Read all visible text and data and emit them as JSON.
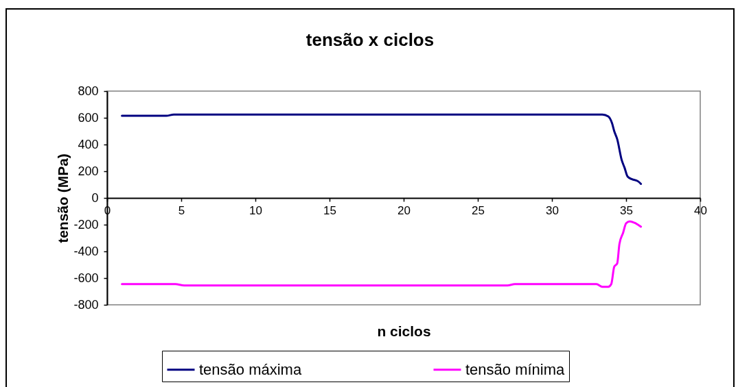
{
  "chart_data": {
    "type": "line",
    "title": "tensão x ciclos",
    "xlabel": "n ciclos",
    "ylabel": "tensão (MPa)",
    "xlim": [
      0,
      40
    ],
    "xticks": [
      0,
      5,
      10,
      15,
      20,
      25,
      30,
      35,
      40
    ],
    "ylim": [
      -800,
      800
    ],
    "yticks": [
      -800,
      -600,
      -400,
      -200,
      0,
      200,
      400,
      600,
      800
    ],
    "grid": false,
    "legend": "bottom",
    "line_style": "solid",
    "series": [
      {
        "name": "tensão máxima",
        "color": "#000080",
        "x": [
          1,
          2,
          3,
          4,
          4.5,
          5,
          6,
          7,
          8,
          9,
          10,
          11,
          12,
          13,
          14,
          15,
          16,
          17,
          18,
          19,
          20,
          21,
          22,
          23,
          24,
          25,
          26,
          27,
          28,
          29,
          30,
          31,
          32,
          33,
          33.4,
          33.8,
          34.05,
          34.2,
          34.4,
          34.7,
          34.9,
          35.1,
          35.4,
          35.8,
          36
        ],
        "values": [
          615,
          615,
          615,
          615,
          625,
          625,
          625,
          625,
          625,
          625,
          625,
          625,
          625,
          625,
          625,
          625,
          625,
          625,
          625,
          625,
          625,
          625,
          625,
          625,
          625,
          625,
          625,
          625,
          625,
          625,
          625,
          625,
          625,
          625,
          625,
          610,
          560,
          500,
          440,
          285,
          225,
          160,
          140,
          125,
          105
        ]
      },
      {
        "name": "tensão mínima",
        "color": "#ff00ff",
        "x": [
          1,
          2,
          3,
          4,
          4.6,
          5.2,
          6,
          7,
          8,
          9,
          10,
          11,
          12,
          13,
          14,
          15,
          16,
          17,
          18,
          19,
          20,
          21,
          22,
          23,
          24,
          25,
          26,
          27,
          27.5,
          28,
          29,
          30,
          31,
          32,
          33,
          33.4,
          33.8,
          34,
          34.2,
          34.4,
          34.55,
          34.8,
          35,
          35.25,
          35.65,
          36
        ],
        "values": [
          -645,
          -645,
          -645,
          -645,
          -645,
          -655,
          -655,
          -655,
          -655,
          -655,
          -655,
          -655,
          -655,
          -655,
          -655,
          -655,
          -655,
          -655,
          -655,
          -655,
          -655,
          -655,
          -655,
          -655,
          -655,
          -655,
          -655,
          -655,
          -645,
          -645,
          -645,
          -645,
          -645,
          -645,
          -645,
          -665,
          -665,
          -645,
          -515,
          -490,
          -345,
          -260,
          -190,
          -175,
          -190,
          -215
        ]
      }
    ]
  }
}
